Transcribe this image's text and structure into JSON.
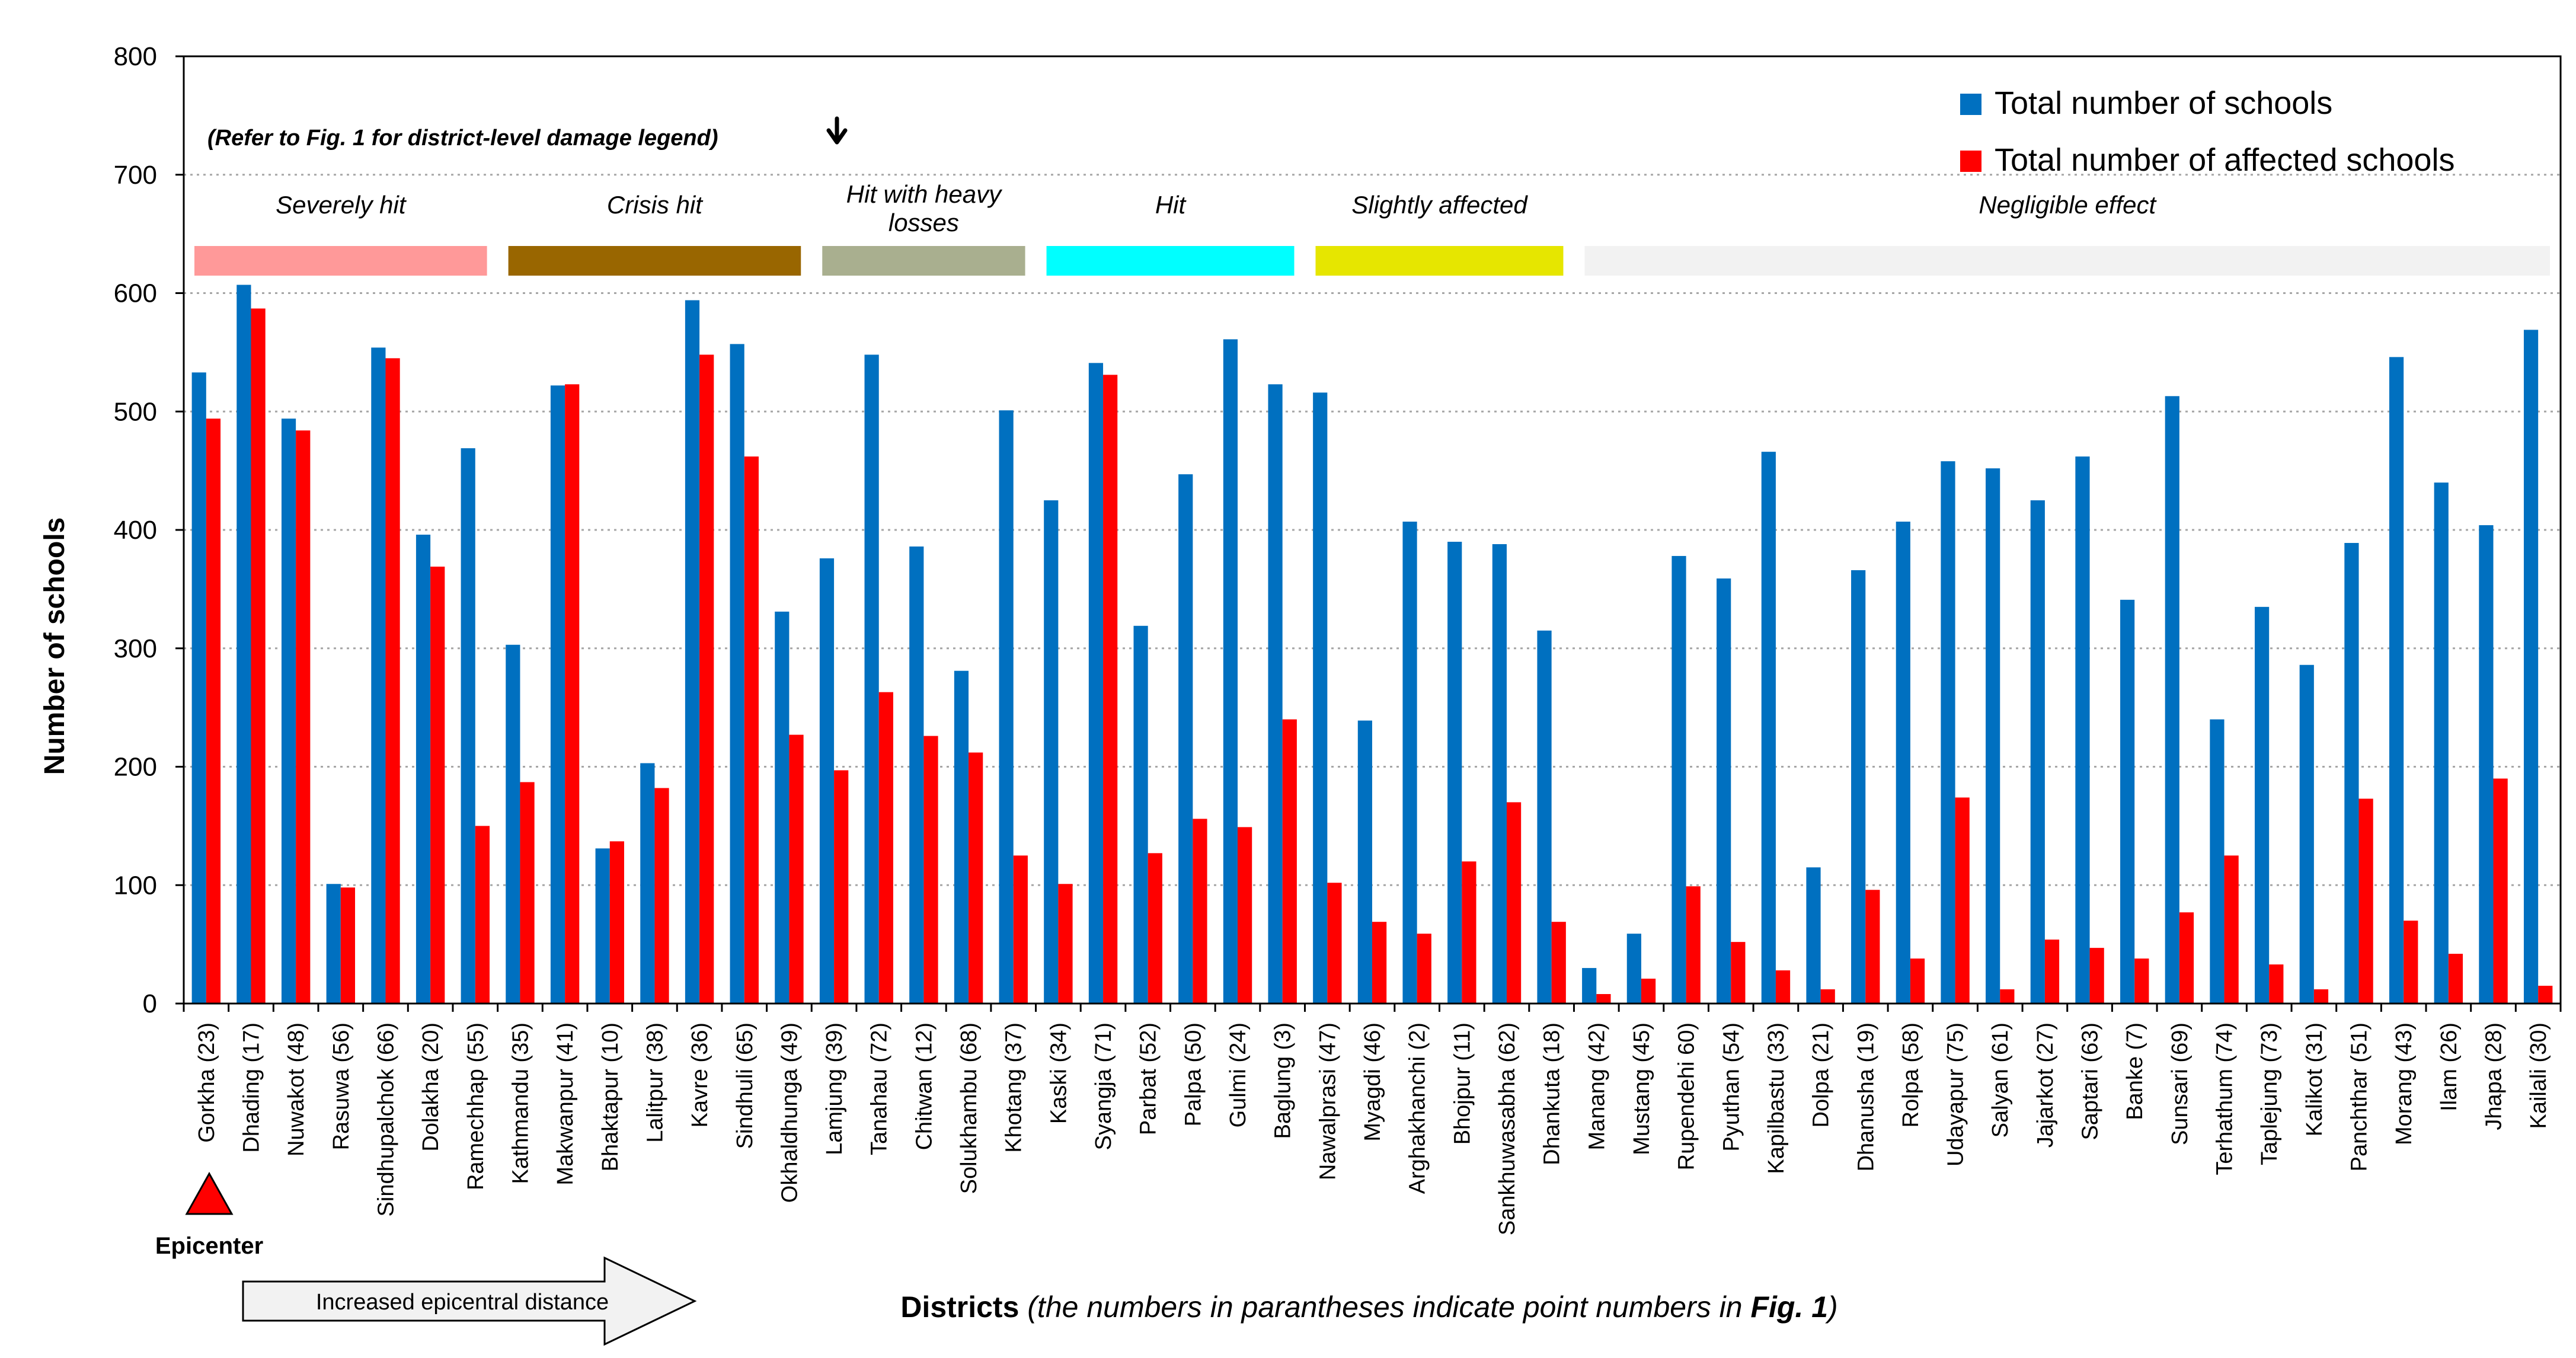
{
  "chart_data": {
    "type": "bar",
    "title": "",
    "ylabel": "Number of schools",
    "xlabel_bold": "Districts",
    "xlabel_italic_1": " (the numbers in parantheses indicate point numbers in ",
    "xlabel_bolditalic": "Fig. 1",
    "xlabel_italic_2": ")",
    "ylim": [
      0,
      800
    ],
    "yticks": [
      0,
      100,
      200,
      300,
      400,
      500,
      600,
      700,
      800
    ],
    "grid": "dotted horizontal",
    "legend_position": "top-right",
    "categories": [
      "Gorkha (23)",
      "Dhading (17)",
      "Nuwakot (48)",
      "Rasuwa (56)",
      "Sindhupalchok (66)",
      "Dolakha (20)",
      "Ramechhap (55)",
      "Kathmandu (35)",
      "Makwanpur (41)",
      "Bhaktapur (10)",
      "Lalitpur (38)",
      "Kavre (36)",
      "Sindhuli (65)",
      "Okhaldhunga (49)",
      "Lamjung (39)",
      "Tanahau (72)",
      "Chitwan (12)",
      "Solukhambu (68)",
      "Khotang (37)",
      "Kaski (34)",
      "Syangja (71)",
      "Parbat (52)",
      "Palpa (50)",
      "Gulmi (24)",
      "Baglung (3)",
      "Nawalprasi (47)",
      "Myagdi (46)",
      "Arghakhanchi (2)",
      "Bhojpur (11)",
      "Sankhuwasabha (62)",
      "Dhankuta (18)",
      "Manang (42)",
      "Mustang (45)",
      "Rupendehi 60)",
      "Pyuthan (54)",
      "Kapilbastu (33)",
      "Dolpa (21)",
      "Dhanusha (19)",
      "Rolpa (58)",
      "Udayapur (75)",
      "Salyan (61)",
      "Jajarkot (27)",
      "Saptari (63)",
      "Banke (7)",
      "Sunsari (69)",
      "Terhathum (74)",
      "Taplejung (73)",
      "Kalikot (31)",
      "Panchthar (51)",
      "Morang (43)",
      "Ilam (26)",
      "Jhapa (28)",
      "Kailali (30)"
    ],
    "series": [
      {
        "name": "Total number of schools",
        "color": "#0070c0",
        "values": [
          533,
          607,
          494,
          101,
          554,
          396,
          469,
          303,
          522,
          131,
          203,
          594,
          557,
          331,
          376,
          548,
          386,
          281,
          501,
          425,
          541,
          319,
          447,
          561,
          523,
          516,
          239,
          407,
          390,
          388,
          315,
          30,
          59,
          378,
          359,
          466,
          115,
          366,
          407,
          458,
          452,
          425,
          462,
          341,
          513,
          240,
          335,
          286,
          389,
          546,
          440,
          404,
          569
        ]
      },
      {
        "name": "Total number of affected schools",
        "color": "#ff0000",
        "values": [
          494,
          587,
          484,
          98,
          545,
          369,
          150,
          187,
          523,
          137,
          182,
          548,
          462,
          227,
          197,
          263,
          226,
          212,
          125,
          101,
          531,
          127,
          156,
          149,
          240,
          102,
          69,
          59,
          120,
          170,
          69,
          8,
          21,
          99,
          52,
          28,
          12,
          96,
          38,
          174,
          12,
          54,
          47,
          38,
          77,
          125,
          33,
          12,
          173,
          70,
          42,
          190,
          15
        ]
      }
    ],
    "damage_groups": [
      {
        "label": "Severely hit",
        "color": "#ff9999",
        "start": 0,
        "end": 6
      },
      {
        "label": "Crisis hit",
        "color": "#996600",
        "start": 7,
        "end": 13
      },
      {
        "label": "Hit with heavy losses",
        "color": "#a9af8f",
        "start": 14,
        "end": 18
      },
      {
        "label": "Hit",
        "color": "#00ffff",
        "start": 19,
        "end": 24
      },
      {
        "label": "Slightly affected",
        "color": "#e6e600",
        "start": 25,
        "end": 30
      },
      {
        "label": "Negligible effect",
        "color": "#f2f2f2",
        "start": 31,
        "end": 52
      }
    ],
    "damage_legend_note": "(Refer to Fig. 1 for district-level damage legend)",
    "epicenter_label": "Epicenter",
    "distance_arrow_label": "Increased epicentral distance"
  }
}
